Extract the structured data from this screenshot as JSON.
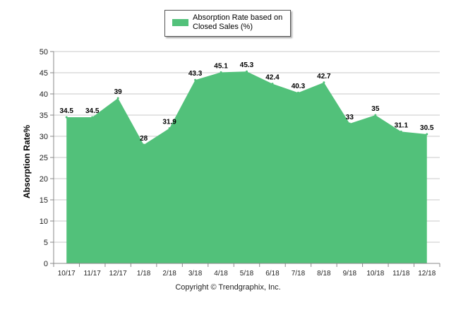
{
  "chart_data": {
    "type": "area",
    "categories": [
      "10/17",
      "11/17",
      "12/17",
      "1/18",
      "2/18",
      "3/18",
      "4/18",
      "5/18",
      "6/18",
      "7/18",
      "8/18",
      "9/18",
      "10/18",
      "11/18",
      "12/18"
    ],
    "series": [
      {
        "name": "Absorption Rate based on Closed Sales (%)",
        "values": [
          34.5,
          34.5,
          39,
          28,
          31.9,
          43.3,
          45.1,
          45.3,
          42.4,
          40.3,
          42.7,
          33,
          35,
          31.1,
          30.5
        ],
        "labels": [
          "34.5",
          "34.5",
          "39",
          "28",
          "31.9",
          "43.3",
          "45.1",
          "45.3",
          "42.4",
          "40.3",
          "42.7",
          "33",
          "35",
          "31.1",
          "30.5"
        ]
      }
    ],
    "xlabel": "",
    "ylabel": "Absorption Rate%",
    "ylim": [
      0,
      50
    ],
    "yticks": [
      "0",
      "5",
      "10",
      "15",
      "20",
      "25",
      "30",
      "35",
      "40",
      "45",
      "50"
    ],
    "grid": true,
    "legend": "top-center",
    "colors": {
      "fill": "#52c17a",
      "grid": "#c8c8c8",
      "axis": "#888888"
    }
  },
  "footer": {
    "copyright": "Copyright © Trendgraphix, Inc."
  }
}
